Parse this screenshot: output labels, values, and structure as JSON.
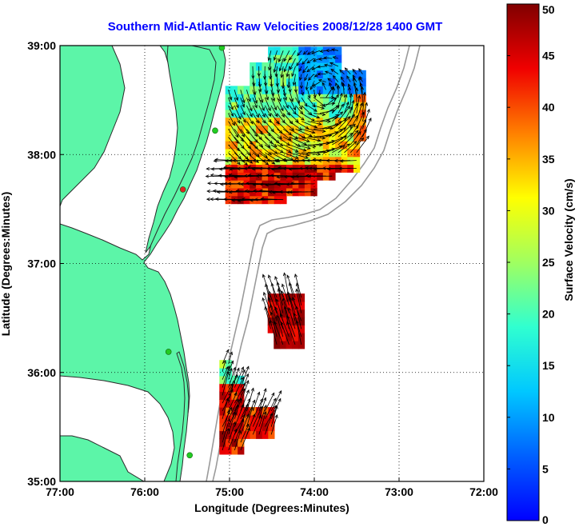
{
  "chart_data": {
    "type": "heatmap",
    "title": "Southern Mid-Atlantic Raw Velocities 2008/12/28 1400 GMT",
    "xlabel": "Longitude (Degrees:Minutes)",
    "ylabel": "Latitude (Degrees:Minutes)",
    "colorbar_label": "Surface Velocity (cm/s)",
    "xlim": [
      -77,
      -72
    ],
    "ylim": [
      35,
      39
    ],
    "x_ticks": [
      -77,
      -76,
      -75,
      -74,
      -73,
      -72
    ],
    "x_tick_labels": [
      "77:00",
      "76:00",
      "75:00",
      "74:00",
      "73:00",
      "72:00"
    ],
    "y_ticks": [
      35,
      36,
      37,
      38,
      39
    ],
    "y_tick_labels": [
      "35:00",
      "36:00",
      "37:00",
      "38:00",
      "39:00"
    ],
    "colorbar_ticks": [
      0,
      5,
      10,
      15,
      20,
      25,
      30,
      35,
      40,
      45,
      50
    ],
    "colorbar_range": [
      0,
      50
    ],
    "grid": true,
    "colors": {
      "land": "#5cf5a8",
      "coast_line": "#2a2a2a",
      "bathymetry": "#9a9a9a",
      "title": "#0000ff",
      "station": "#22cc22"
    },
    "stations": [
      {
        "lon": -75.09,
        "lat": 38.98,
        "color": "#22cc22"
      },
      {
        "lon": -75.17,
        "lat": 38.22,
        "color": "#22cc22"
      },
      {
        "lon": -75.55,
        "lat": 37.68,
        "color": "#dd2222"
      },
      {
        "lon": -75.72,
        "lat": 36.19,
        "color": "#22cc22"
      },
      {
        "lon": -75.47,
        "lat": 35.24,
        "color": "#22cc22"
      }
    ],
    "regions": [
      {
        "name": "north-field",
        "grid": {
          "lon_min": -75.05,
          "lat_min": 37.55,
          "step": 0.072,
          "cols": 23,
          "rows": 21
        },
        "speed_field": "north",
        "mask": "north"
      },
      {
        "name": "middle-field",
        "grid": {
          "lon_min": -74.55,
          "lat_min": 36.22,
          "step": 0.072,
          "cols": 6,
          "rows": 7
        },
        "speed_field": "middle",
        "mask": "middle"
      },
      {
        "name": "south-field",
        "grid": {
          "lon_min": -75.12,
          "lat_min": 35.25,
          "step": 0.072,
          "cols": 10,
          "rows": 12
        },
        "speed_field": "south",
        "mask": "south"
      }
    ]
  }
}
